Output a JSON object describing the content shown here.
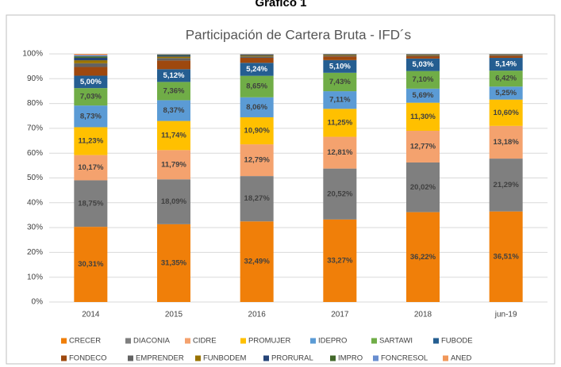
{
  "chart_data": {
    "type": "stacked_bar",
    "caption": "Gráfico 1",
    "title": "Participación de Cartera Bruta - IFD´s",
    "categories": [
      "2014",
      "2015",
      "2016",
      "2017",
      "2018",
      "jun-19"
    ],
    "ylim": [
      0,
      100
    ],
    "yticks": [
      {
        "value": 0,
        "label": "0%"
      },
      {
        "value": 10,
        "label": "10%"
      },
      {
        "value": 20,
        "label": "20%"
      },
      {
        "value": 30,
        "label": "30%"
      },
      {
        "value": 40,
        "label": "40%"
      },
      {
        "value": 50,
        "label": "50%"
      },
      {
        "value": 60,
        "label": "60%"
      },
      {
        "value": 70,
        "label": "70%"
      },
      {
        "value": 80,
        "label": "80%"
      },
      {
        "value": 90,
        "label": "90%"
      },
      {
        "value": 100,
        "label": "100%"
      }
    ],
    "grid": true,
    "legend": "bottom",
    "series": [
      {
        "name": "CRECER",
        "color": "#f07f09",
        "values": [
          30.31,
          31.35,
          32.49,
          33.27,
          36.22,
          36.51
        ],
        "value_labels": [
          "30,31%",
          "31,35%",
          "32,49%",
          "33,27%",
          "36,22%",
          "36,51%"
        ]
      },
      {
        "name": "DIACONIA",
        "color": "#7f7f7f",
        "values": [
          18.75,
          18.09,
          18.27,
          20.52,
          20.02,
          21.29
        ],
        "value_labels": [
          "18,75%",
          "18,09%",
          "18,27%",
          "20,52%",
          "20,02%",
          "21,29%"
        ]
      },
      {
        "name": "CIDRE",
        "color": "#f4a26e",
        "values": [
          10.17,
          11.79,
          12.79,
          12.81,
          12.77,
          13.18
        ],
        "value_labels": [
          "10,17%",
          "11,79%",
          "12,79%",
          "12,81%",
          "12,77%",
          "13,18%"
        ]
      },
      {
        "name": "PROMUJER",
        "color": "#ffc000",
        "values": [
          11.23,
          11.74,
          10.9,
          11.25,
          11.3,
          10.6
        ],
        "value_labels": [
          "11,23%",
          "11,74%",
          "10,90%",
          "11,25%",
          "11,30%",
          "10,60%"
        ]
      },
      {
        "name": "IDEPRO",
        "color": "#5b9bd5",
        "values": [
          8.73,
          8.37,
          8.06,
          7.11,
          5.69,
          5.25
        ],
        "value_labels": [
          "8,73%",
          "8,37%",
          "8,06%",
          "7,11%",
          "5,69%",
          "5,25%"
        ]
      },
      {
        "name": "SARTAWI",
        "color": "#70ad47",
        "values": [
          7.03,
          7.36,
          8.65,
          7.43,
          7.1,
          6.42
        ],
        "value_labels": [
          "7,03%",
          "7,36%",
          "8,65%",
          "7,43%",
          "7,10%",
          "6,42%"
        ]
      },
      {
        "name": "FUBODE",
        "color": "#255e91",
        "values": [
          5.0,
          5.12,
          5.24,
          5.1,
          5.03,
          5.14
        ],
        "value_labels": [
          "5,00%",
          "5,12%",
          "5,24%",
          "5,10%",
          "5,03%",
          "5,14%"
        ]
      },
      {
        "name": "FONDECO",
        "color": "#9e480e",
        "values": [
          3.5,
          3.5,
          2.0,
          1.5,
          0.9,
          0.8
        ]
      },
      {
        "name": "EMPRENDER",
        "color": "#636363",
        "values": [
          1.5,
          1.0,
          0.6,
          0.4,
          0.4,
          0.4
        ]
      },
      {
        "name": "FUNBODEM",
        "color": "#997300",
        "values": [
          1.2,
          0.6,
          0.4,
          0.3,
          0.3,
          0.2
        ]
      },
      {
        "name": "PRORURAL",
        "color": "#264478",
        "values": [
          1.0,
          0.5,
          0.3,
          0.2,
          0.2,
          0.15
        ]
      },
      {
        "name": "IMPRO",
        "color": "#43682b",
        "values": [
          0.6,
          0.3,
          0.1,
          0.05,
          0.03,
          0.03
        ]
      },
      {
        "name": "FONCRESOL",
        "color": "#698ed0",
        "values": [
          0.5,
          0.2,
          0.1,
          0.03,
          0.02,
          0.02
        ]
      },
      {
        "name": "ANED",
        "color": "#f1975a",
        "values": [
          0.48,
          0.08,
          0.1,
          0.03,
          0.02,
          0.01
        ]
      }
    ]
  }
}
